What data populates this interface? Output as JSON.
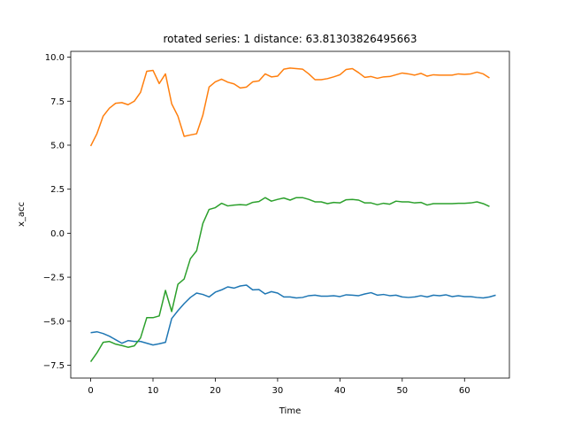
{
  "chart_data": {
    "type": "line",
    "title": "rotated series: 1  distance: 63.81303826495663",
    "xlabel": "Time",
    "ylabel": "x_acc",
    "xlim": [
      -3.2,
      67.2
    ],
    "ylim": [
      -8.23,
      10.33
    ],
    "xticks": [
      0,
      10,
      20,
      30,
      40,
      50,
      60
    ],
    "yticks": [
      -7.5,
      -5.0,
      -2.5,
      0.0,
      2.5,
      5.0,
      7.5,
      10.0
    ],
    "xtick_labels": [
      "0",
      "10",
      "20",
      "30",
      "40",
      "50",
      "60"
    ],
    "ytick_labels": [
      "−7.5",
      "−5.0",
      "−2.5",
      "0.0",
      "2.5",
      "5.0",
      "7.5",
      "10.0"
    ],
    "grid": false,
    "series": [
      {
        "color": "#1f77b4",
        "values": [
          -5.65,
          -5.6,
          -5.7,
          -5.85,
          -6.05,
          -6.25,
          -6.1,
          -6.15,
          -6.15,
          -6.25,
          -6.35,
          -6.28,
          -6.2,
          -4.85,
          -4.4,
          -4.0,
          -3.65,
          -3.4,
          -3.48,
          -3.62,
          -3.35,
          -3.22,
          -3.05,
          -3.12,
          -3.0,
          -2.95,
          -3.22,
          -3.2,
          -3.45,
          -3.32,
          -3.4,
          -3.62,
          -3.62,
          -3.68,
          -3.65,
          -3.55,
          -3.52,
          -3.58,
          -3.58,
          -3.55,
          -3.6,
          -3.5,
          -3.52,
          -3.55,
          -3.45,
          -3.38,
          -3.52,
          -3.48,
          -3.55,
          -3.52,
          -3.62,
          -3.65,
          -3.62,
          -3.55,
          -3.62,
          -3.52,
          -3.55,
          -3.5,
          -3.6,
          -3.55,
          -3.6,
          -3.6,
          -3.65,
          -3.68,
          -3.62,
          -3.52
        ]
      },
      {
        "color": "#ff7f0e",
        "values": [
          4.95,
          5.65,
          6.65,
          7.1,
          7.38,
          7.42,
          7.3,
          7.5,
          8.0,
          9.2,
          9.25,
          8.5,
          9.05,
          7.35,
          6.65,
          5.5,
          5.58,
          5.65,
          6.7,
          8.3,
          8.6,
          8.75,
          8.58,
          8.48,
          8.25,
          8.3,
          8.6,
          8.65,
          9.05,
          8.88,
          8.92,
          9.32,
          9.38,
          9.35,
          9.32,
          9.05,
          8.72,
          8.72,
          8.78,
          8.88,
          9.0,
          9.3,
          9.35,
          9.12,
          8.85,
          8.9,
          8.8,
          8.88,
          8.9,
          9.0,
          9.1,
          9.05,
          8.98,
          9.08,
          8.92,
          9.0,
          8.98,
          8.98,
          8.98,
          9.05,
          9.02,
          9.05,
          9.15,
          9.05,
          8.82
        ]
      },
      {
        "color": "#2ca02c",
        "values": [
          -7.3,
          -6.8,
          -6.2,
          -6.15,
          -6.3,
          -6.38,
          -6.48,
          -6.4,
          -5.95,
          -4.8,
          -4.8,
          -4.7,
          -3.25,
          -4.45,
          -2.9,
          -2.6,
          -1.45,
          -1.0,
          0.55,
          1.35,
          1.45,
          1.7,
          1.55,
          1.6,
          1.62,
          1.6,
          1.75,
          1.8,
          2.02,
          1.82,
          1.92,
          2.0,
          1.88,
          2.02,
          2.02,
          1.92,
          1.78,
          1.78,
          1.68,
          1.75,
          1.72,
          1.9,
          1.92,
          1.88,
          1.72,
          1.72,
          1.62,
          1.7,
          1.65,
          1.82,
          1.78,
          1.78,
          1.72,
          1.75,
          1.6,
          1.68,
          1.68,
          1.68,
          1.68,
          1.7,
          1.7,
          1.72,
          1.78,
          1.68,
          1.52
        ]
      }
    ]
  }
}
